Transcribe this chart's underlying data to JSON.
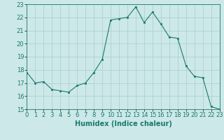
{
  "x": [
    0,
    1,
    2,
    3,
    4,
    5,
    6,
    7,
    8,
    9,
    10,
    11,
    12,
    13,
    14,
    15,
    16,
    17,
    18,
    19,
    20,
    21,
    22,
    23
  ],
  "y": [
    17.8,
    17.0,
    17.1,
    16.5,
    16.4,
    16.3,
    16.8,
    17.0,
    17.8,
    18.8,
    21.8,
    21.9,
    22.0,
    22.8,
    21.6,
    22.4,
    21.5,
    20.5,
    20.4,
    18.3,
    17.5,
    17.4,
    15.2,
    15.0
  ],
  "xlim": [
    0,
    23
  ],
  "ylim": [
    15,
    23
  ],
  "yticks": [
    15,
    16,
    17,
    18,
    19,
    20,
    21,
    22,
    23
  ],
  "xticks": [
    0,
    1,
    2,
    3,
    4,
    5,
    6,
    7,
    8,
    9,
    10,
    11,
    12,
    13,
    14,
    15,
    16,
    17,
    18,
    19,
    20,
    21,
    22,
    23
  ],
  "xlabel": "Humidex (Indice chaleur)",
  "line_color": "#1a7a6e",
  "marker_color": "#1a7a6e",
  "bg_color": "#cce8e8",
  "grid_color": "#aacccc",
  "xlabel_fontsize": 7,
  "tick_fontsize": 6
}
